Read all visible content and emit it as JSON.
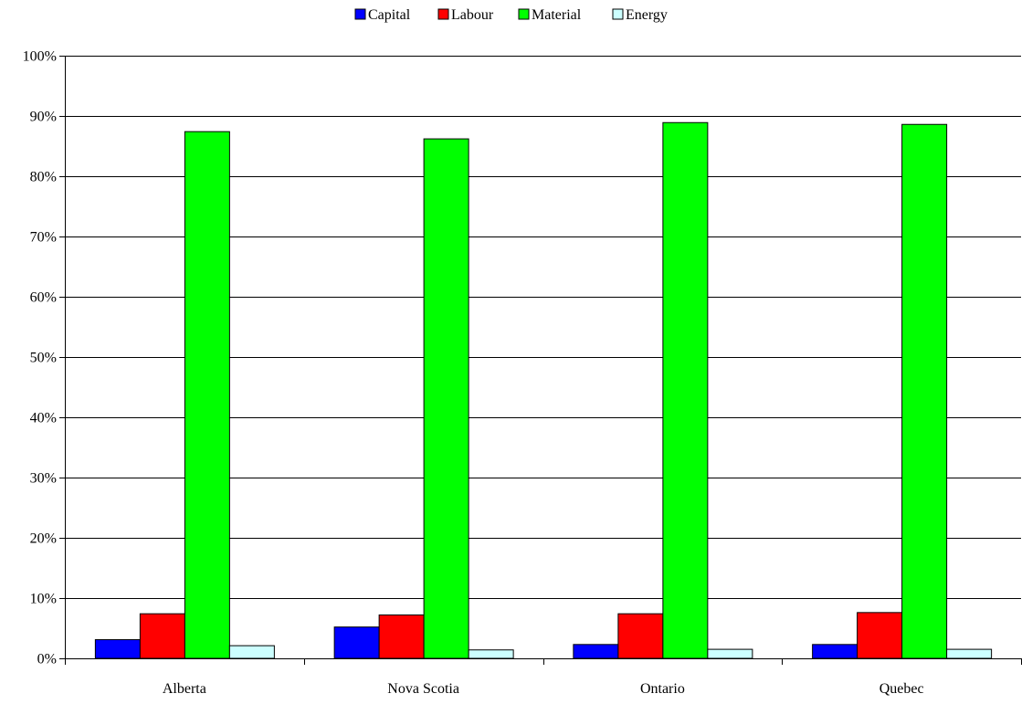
{
  "chart_data": {
    "type": "bar",
    "categories": [
      "Alberta",
      "Nova Scotia",
      "Ontario",
      "Quebec"
    ],
    "series": [
      {
        "name": "Capital",
        "color": "#0000ff",
        "values": [
          3.1,
          5.2,
          2.3,
          2.3
        ]
      },
      {
        "name": "Labour",
        "color": "#ff0000",
        "values": [
          7.4,
          7.2,
          7.4,
          7.6
        ]
      },
      {
        "name": "Material",
        "color": "#00ff00",
        "values": [
          87.4,
          86.2,
          88.9,
          88.6
        ]
      },
      {
        "name": "Energy",
        "color": "#ccffff",
        "values": [
          2.1,
          1.4,
          1.5,
          1.5
        ]
      }
    ],
    "ylim": [
      0,
      100
    ],
    "yticks": [
      "0%",
      "10%",
      "20%",
      "30%",
      "40%",
      "50%",
      "60%",
      "70%",
      "80%",
      "90%",
      "100%"
    ],
    "grid": true,
    "legend_position": "top-center",
    "title": "",
    "xlabel": "",
    "ylabel": ""
  }
}
